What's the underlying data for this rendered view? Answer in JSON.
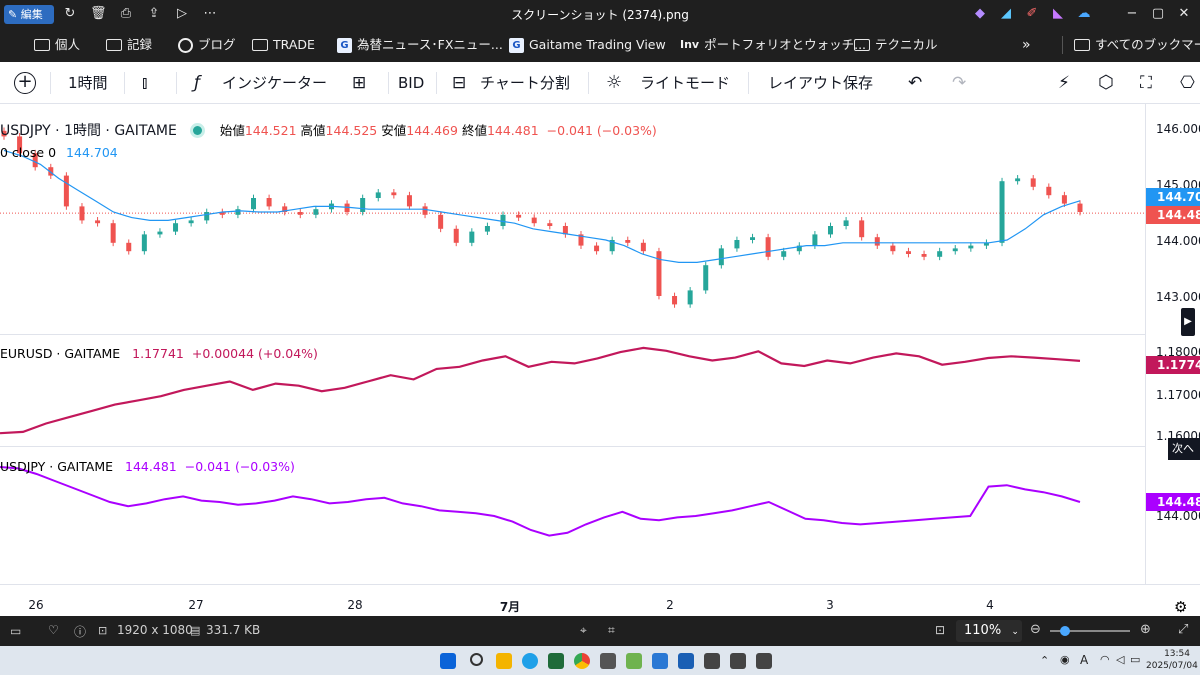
{
  "titlebar": {
    "edit_label": "編集",
    "window_title": "スクリーンショット (2374).png"
  },
  "bookmarks": [
    {
      "label": "個人",
      "icon": "folder-icon"
    },
    {
      "label": "記録",
      "icon": "folder-icon"
    },
    {
      "label": "ブログ",
      "icon": "blog-icon"
    },
    {
      "label": "TRADE",
      "icon": "folder-icon"
    },
    {
      "label": "為替ニュース･FXニュー...",
      "icon": "gaitame-icon"
    },
    {
      "label": "Gaitame Trading View",
      "icon": "gaitame-icon"
    },
    {
      "label": "ポートフォリオとウォッチ...",
      "icon": "inv-icon"
    },
    {
      "label": "テクニカル",
      "icon": "folder-icon"
    },
    {
      "label": "すべてのブックマーク",
      "icon": "folder-icon"
    }
  ],
  "toolbar": {
    "interval": "1時間",
    "indicators": "インジケーター",
    "bid": "BID",
    "split": "チャート分割",
    "light_mode": "ライトモード",
    "save_layout": "レイアウト保存"
  },
  "main_legend": {
    "symbol": "USDJPY · 1時間 · GAITAME",
    "open_label": "始値",
    "open": "144.521",
    "high_label": "高値",
    "high": "144.525",
    "low_label": "安値",
    "low": "144.469",
    "close_label": "終値",
    "close": "144.481",
    "change": "−0.041 (−0.03%)",
    "ma_label": "0 close 0",
    "ma_value": "144.704"
  },
  "eur_legend": {
    "symbol": "EURUSD · GAITAME",
    "value": "1.17741",
    "change": "+0.00044 (+0.04%)"
  },
  "jpy_legend": {
    "symbol": "USDJPY · GAITAME",
    "value": "144.481",
    "change": "−0.041 (−0.03%)"
  },
  "price_axis": {
    "main_ticks": [
      "146.000",
      "145.000",
      "144.000",
      "143.000"
    ],
    "ma_tag": "144.704",
    "close_tag": "144.481",
    "eur_ticks": [
      "1.18000",
      "1.17000",
      "1.16000"
    ],
    "eur_tag": "1.17741",
    "jpy_ticks": [
      "144.000"
    ],
    "jpy_tag": "144.481",
    "next_label": "次へ"
  },
  "colors": {
    "up": "#26a69a",
    "down": "#ef5350",
    "ma": "#2196f3",
    "eur": "#c2185b",
    "jpy": "#aa00ff"
  },
  "time_axis": [
    "26",
    "27",
    "28",
    "7月",
    "2",
    "3",
    "4"
  ],
  "statusbar": {
    "dimensions": "1920 x 1080",
    "filesize": "331.7 KB",
    "zoom": "110%"
  },
  "clock": {
    "time": "13:54",
    "date": "2025/07/04"
  },
  "chart_data": {
    "type": "candlestick",
    "series": [
      {
        "name": "USDJPY",
        "close": [
          145.85,
          145.55,
          145.3,
          145.15,
          144.6,
          144.35,
          144.3,
          143.95,
          143.8,
          144.1,
          144.15,
          144.3,
          144.35,
          144.5,
          144.45,
          144.55,
          144.75,
          144.6,
          144.5,
          144.45,
          144.55,
          144.65,
          144.5,
          144.75,
          144.85,
          144.8,
          144.6,
          144.45,
          144.2,
          143.95,
          144.15,
          144.25,
          144.45,
          144.4,
          144.3,
          144.25,
          144.1,
          143.9,
          143.8,
          144.0,
          143.95,
          143.8,
          143.0,
          142.85,
          143.1,
          143.55,
          143.85,
          144.0,
          144.05,
          143.7,
          143.8,
          143.9,
          144.1,
          144.25,
          144.35,
          144.05,
          143.9,
          143.8,
          143.75,
          143.7,
          143.8,
          143.85,
          143.9,
          143.95,
          145.05,
          145.1,
          144.95,
          144.8,
          144.65,
          144.5
        ],
        "moving_average": [
          145.6,
          145.5,
          145.35,
          145.1,
          144.9,
          144.7,
          144.5,
          144.4,
          144.35,
          144.35,
          144.4,
          144.45,
          144.5,
          144.52,
          144.5,
          144.5,
          144.55,
          144.6,
          144.6,
          144.58,
          144.55,
          144.55,
          144.55,
          144.55,
          144.5,
          144.45,
          144.4,
          144.35,
          144.3,
          144.2,
          144.15,
          144.1,
          144.05,
          144.0,
          143.9,
          143.75,
          143.65,
          143.6,
          143.6,
          143.65,
          143.7,
          143.75,
          143.8,
          143.85,
          143.9,
          143.9,
          143.95,
          143.95,
          143.95,
          143.95,
          143.95,
          143.95,
          143.95,
          143.95,
          143.95,
          144.0,
          144.2,
          144.45,
          144.6,
          144.7
        ]
      },
      {
        "name": "EURUSD",
        "values": [
          1.1602,
          1.1605,
          1.1625,
          1.164,
          1.1655,
          1.167,
          1.168,
          1.169,
          1.1705,
          1.1715,
          1.1725,
          1.1705,
          1.172,
          1.1715,
          1.1702,
          1.171,
          1.1725,
          1.174,
          1.173,
          1.1755,
          1.176,
          1.1775,
          1.1785,
          1.176,
          1.1772,
          1.1768,
          1.178,
          1.1795,
          1.1805,
          1.1798,
          1.1785,
          1.1775,
          1.1782,
          1.1797,
          1.1768,
          1.1762,
          1.1775,
          1.1768,
          1.1782,
          1.1792,
          1.1785,
          1.1765,
          1.1772,
          1.1781,
          1.1785,
          1.1782,
          1.1778,
          1.1774
        ]
      },
      {
        "name": "USDJPY",
        "values": [
          145.75,
          145.7,
          145.5,
          145.25,
          145.0,
          144.75,
          144.5,
          144.35,
          144.45,
          144.6,
          144.7,
          144.55,
          144.5,
          144.4,
          144.45,
          144.55,
          144.7,
          144.6,
          144.45,
          144.5,
          144.6,
          144.65,
          144.45,
          144.35,
          144.2,
          144.15,
          144.1,
          144.0,
          143.8,
          143.5,
          143.3,
          143.4,
          143.7,
          143.95,
          144.15,
          143.9,
          143.85,
          143.95,
          144.0,
          144.1,
          144.2,
          144.35,
          144.5,
          144.2,
          143.9,
          143.85,
          143.75,
          143.7,
          143.75,
          143.8,
          143.85,
          143.9,
          143.95,
          144.0,
          145.05,
          145.1,
          144.95,
          144.85,
          144.7,
          144.5
        ]
      }
    ]
  }
}
